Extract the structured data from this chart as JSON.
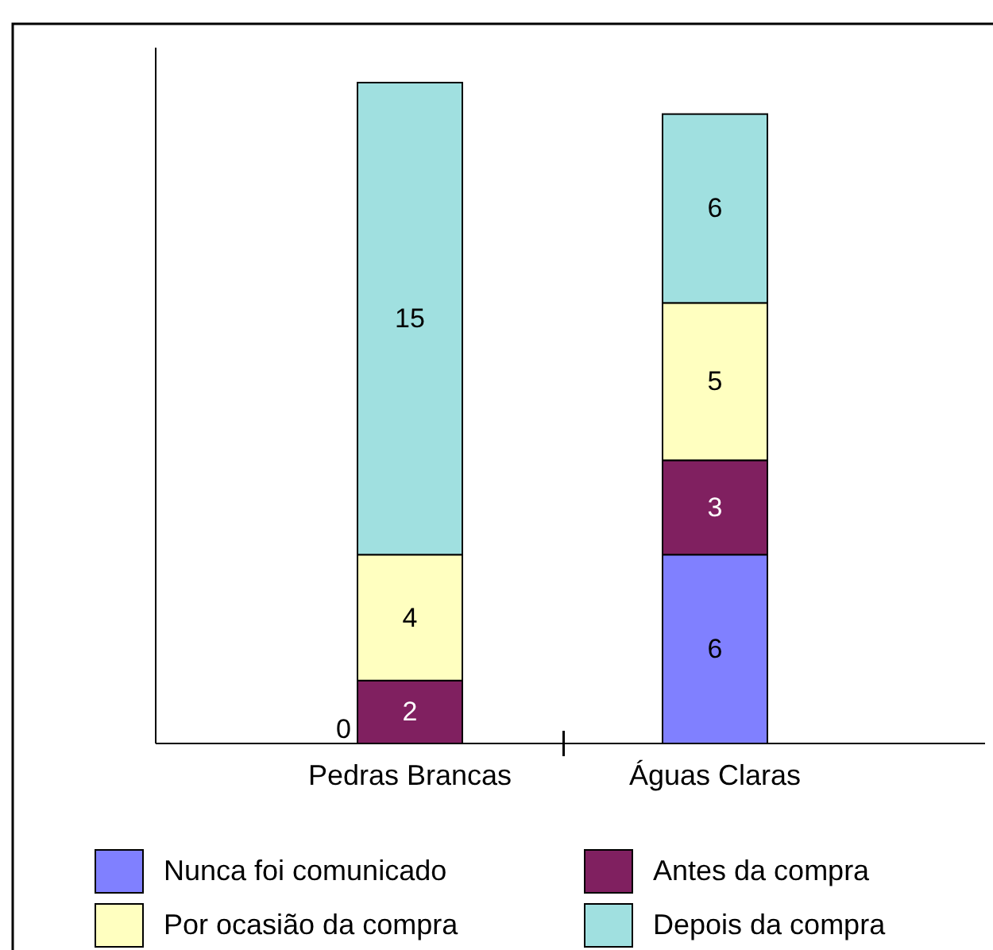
{
  "chart_data": {
    "type": "bar",
    "stacked": true,
    "categories": [
      "Pedras Brancas",
      "Águas Claras"
    ],
    "series": [
      {
        "name": "Nunca foi comunicado",
        "color": "#8080ff",
        "values": [
          0,
          6
        ],
        "value_labels": [
          null,
          "6"
        ]
      },
      {
        "name": "Antes da compra",
        "color": "#802060",
        "values": [
          2,
          3
        ],
        "value_labels": [
          "2",
          "3"
        ]
      },
      {
        "name": "Por ocasião da compra",
        "color": "#ffffc0",
        "values": [
          4,
          5
        ],
        "value_labels": [
          "4",
          "5"
        ]
      },
      {
        "name": "Depois da compra",
        "color": "#a0e0e0",
        "values": [
          15,
          6
        ],
        "value_labels": [
          "15",
          "6"
        ]
      }
    ],
    "annotations": [
      {
        "text": "0",
        "x": "Pedras Brancas",
        "y": 0
      }
    ],
    "tick_labels": "x",
    "legend": "bottom"
  }
}
